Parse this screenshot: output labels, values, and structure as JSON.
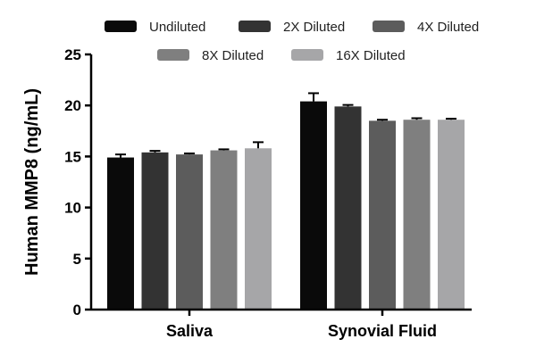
{
  "chart_data": {
    "type": "bar",
    "title": "",
    "xlabel": "",
    "ylabel": "Human MMP8 (ng/mL)",
    "ylim": [
      0,
      25
    ],
    "yticks": [
      0,
      5,
      10,
      15,
      20,
      25
    ],
    "grid": false,
    "legend_position": "top",
    "categories": [
      "Saliva",
      "Synovial Fluid"
    ],
    "series": [
      {
        "name": "Undiluted",
        "color": "#0a0a0a",
        "values": [
          14.9,
          20.4
        ],
        "errors": [
          0.3,
          0.8
        ]
      },
      {
        "name": "2X Diluted",
        "color": "#333333",
        "values": [
          15.4,
          19.9
        ],
        "errors": [
          0.15,
          0.15
        ]
      },
      {
        "name": "4X Diluted",
        "color": "#5c5c5c",
        "values": [
          15.2,
          18.5
        ],
        "errors": [
          0.1,
          0.1
        ]
      },
      {
        "name": "8X Diluted",
        "color": "#7f7f7f",
        "values": [
          15.6,
          18.6
        ],
        "errors": [
          0.1,
          0.15
        ]
      },
      {
        "name": "16X Diluted",
        "color": "#a6a6a8",
        "values": [
          15.8,
          18.6
        ],
        "errors": [
          0.6,
          0.1
        ]
      }
    ]
  }
}
